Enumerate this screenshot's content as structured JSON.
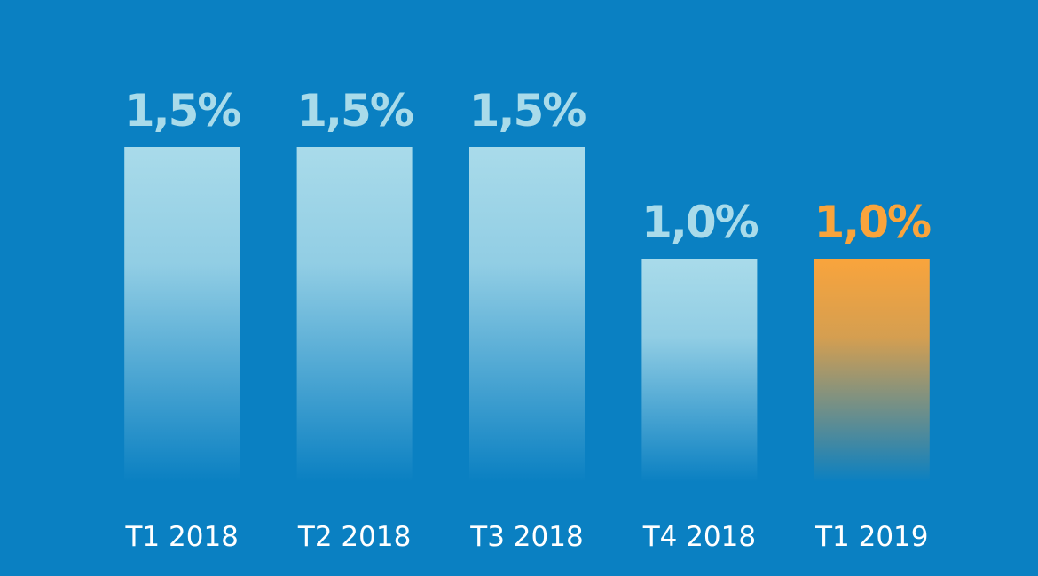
{
  "chart_data": {
    "type": "bar",
    "categories": [
      "T1 2018",
      "T2 2018",
      "T3 2018",
      "T4 2018",
      "T1 2019"
    ],
    "values": [
      1.5,
      1.5,
      1.5,
      1.0,
      1.0
    ],
    "value_labels": [
      "1,5%",
      "1,5%",
      "1,5%",
      "1,0%",
      "1,0%"
    ],
    "colors": [
      "#a9dbea",
      "#a9dbea",
      "#a9dbea",
      "#a9dbea",
      "#f9a43c"
    ]
  }
}
